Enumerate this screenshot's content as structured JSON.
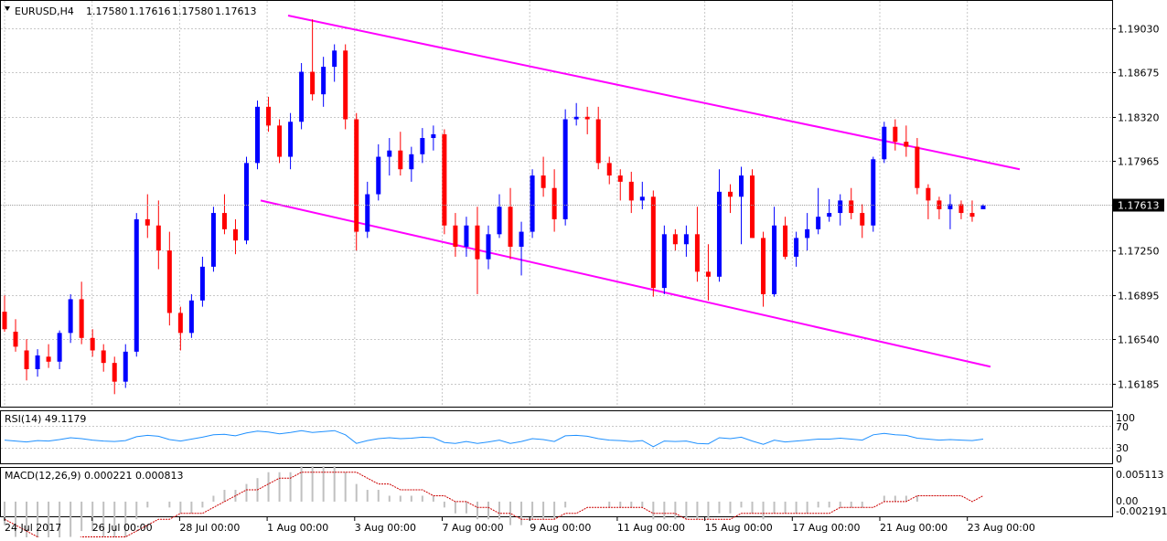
{
  "header": {
    "symbol": "EURUSD,H4",
    "open": "1.17580",
    "high": "1.17616",
    "low": "1.17580",
    "close": "1.17613"
  },
  "price_axis": {
    "ticks": [
      "1.19030",
      "1.18675",
      "1.18320",
      "1.17965",
      "1.17250",
      "1.16895",
      "1.16540",
      "1.16185"
    ],
    "current_price": "1.17613"
  },
  "rsi": {
    "label": "RSI(14) 49.1179",
    "ticks": [
      "100",
      "70",
      "30",
      "0"
    ]
  },
  "macd": {
    "label": "MACD(12,26,9) 0.000221 0.000813",
    "ticks": [
      "0.005113",
      "0.00",
      "-0.002191"
    ]
  },
  "time_axis": {
    "labels": [
      "24 Jul 2017",
      "26 Jul 00:00",
      "28 Jul 00:00",
      "1 Aug 00:00",
      "3 Aug 00:00",
      "7 Aug 00:00",
      "9 Aug 00:00",
      "11 Aug 00:00",
      "15 Aug 00:00",
      "17 Aug 00:00",
      "21 Aug 00:00",
      "23 Aug 00:00"
    ]
  },
  "colors": {
    "bull": "#0000ff",
    "bear": "#ff0000",
    "channel": "#ff00ff",
    "rsi_line": "#1e90ff",
    "macd_signal": "#cc0000",
    "macd_hist": "#c0c0c0",
    "grid": "#c8c8c8"
  },
  "chart_data": {
    "type": "candlestick",
    "ohlc": [
      [
        1.1676,
        1.1689,
        1.166,
        1.1662
      ],
      [
        1.166,
        1.167,
        1.1644,
        1.1648
      ],
      [
        1.1645,
        1.1654,
        1.1621,
        1.163
      ],
      [
        1.163,
        1.1646,
        1.1624,
        1.1641
      ],
      [
        1.164,
        1.165,
        1.1631,
        1.1636
      ],
      [
        1.1636,
        1.1661,
        1.163,
        1.1659
      ],
      [
        1.1659,
        1.169,
        1.1651,
        1.1686
      ],
      [
        1.1686,
        1.17,
        1.165,
        1.1655
      ],
      [
        1.1655,
        1.1662,
        1.164,
        1.1645
      ],
      [
        1.1645,
        1.165,
        1.1628,
        1.1635
      ],
      [
        1.1635,
        1.164,
        1.161,
        1.162
      ],
      [
        1.162,
        1.165,
        1.1615,
        1.1644
      ],
      [
        1.1644,
        1.1755,
        1.164,
        1.175
      ],
      [
        1.175,
        1.177,
        1.1735,
        1.1745
      ],
      [
        1.1745,
        1.1765,
        1.171,
        1.1725
      ],
      [
        1.1725,
        1.174,
        1.1665,
        1.1675
      ],
      [
        1.1675,
        1.168,
        1.1645,
        1.1659
      ],
      [
        1.1659,
        1.169,
        1.1655,
        1.1685
      ],
      [
        1.1685,
        1.172,
        1.168,
        1.1712
      ],
      [
        1.1712,
        1.176,
        1.1708,
        1.1755
      ],
      [
        1.1755,
        1.177,
        1.1738,
        1.1742
      ],
      [
        1.1742,
        1.175,
        1.1722,
        1.1733
      ],
      [
        1.1733,
        1.18,
        1.173,
        1.1795
      ],
      [
        1.1795,
        1.1845,
        1.179,
        1.184
      ],
      [
        1.184,
        1.1848,
        1.182,
        1.1825
      ],
      [
        1.1825,
        1.183,
        1.1795,
        1.18
      ],
      [
        1.18,
        1.1835,
        1.179,
        1.1828
      ],
      [
        1.1828,
        1.1875,
        1.1822,
        1.1868
      ],
      [
        1.1868,
        1.191,
        1.1845,
        1.185
      ],
      [
        1.185,
        1.188,
        1.184,
        1.1872
      ],
      [
        1.1872,
        1.189,
        1.186,
        1.1885
      ],
      [
        1.1885,
        1.189,
        1.1822,
        1.183
      ],
      [
        1.183,
        1.1835,
        1.1725,
        1.174
      ],
      [
        1.174,
        1.178,
        1.1735,
        1.177
      ],
      [
        1.177,
        1.181,
        1.1765,
        1.18
      ],
      [
        1.18,
        1.1815,
        1.1785,
        1.1805
      ],
      [
        1.1805,
        1.182,
        1.1785,
        1.179
      ],
      [
        1.179,
        1.1808,
        1.178,
        1.1802
      ],
      [
        1.1802,
        1.1823,
        1.1795,
        1.1815
      ],
      [
        1.1815,
        1.1825,
        1.1805,
        1.1818
      ],
      [
        1.1818,
        1.1822,
        1.1738,
        1.1745
      ],
      [
        1.1745,
        1.1755,
        1.172,
        1.1728
      ],
      [
        1.1728,
        1.1752,
        1.172,
        1.1745
      ],
      [
        1.1745,
        1.176,
        1.169,
        1.1718
      ],
      [
        1.1718,
        1.1745,
        1.171,
        1.1738
      ],
      [
        1.1738,
        1.177,
        1.1735,
        1.176
      ],
      [
        1.176,
        1.1775,
        1.1718,
        1.1728
      ],
      [
        1.1728,
        1.1748,
        1.1705,
        1.174
      ],
      [
        1.174,
        1.179,
        1.1735,
        1.1785
      ],
      [
        1.1785,
        1.18,
        1.1768,
        1.1775
      ],
      [
        1.1775,
        1.179,
        1.174,
        1.175
      ],
      [
        1.175,
        1.1838,
        1.1745,
        1.183
      ],
      [
        1.183,
        1.1843,
        1.1825,
        1.1832
      ],
      [
        1.1832,
        1.184,
        1.1818,
        1.183
      ],
      [
        1.183,
        1.184,
        1.179,
        1.1795
      ],
      [
        1.1795,
        1.18,
        1.1778,
        1.1785
      ],
      [
        1.1785,
        1.179,
        1.1765,
        1.178
      ],
      [
        1.178,
        1.1788,
        1.1755,
        1.1765
      ],
      [
        1.1765,
        1.178,
        1.1758,
        1.1768
      ],
      [
        1.1768,
        1.1773,
        1.1688,
        1.1695
      ],
      [
        1.1695,
        1.1745,
        1.169,
        1.1738
      ],
      [
        1.1738,
        1.1742,
        1.1725,
        1.173
      ],
      [
        1.173,
        1.1745,
        1.172,
        1.1738
      ],
      [
        1.1738,
        1.176,
        1.17,
        1.1708
      ],
      [
        1.1708,
        1.173,
        1.1685,
        1.1704
      ],
      [
        1.1704,
        1.179,
        1.17,
        1.1772
      ],
      [
        1.1772,
        1.1778,
        1.1755,
        1.1768
      ],
      [
        1.1768,
        1.1792,
        1.173,
        1.1785
      ],
      [
        1.1785,
        1.179,
        1.1735,
        1.1735
      ],
      [
        1.1735,
        1.174,
        1.168,
        1.169
      ],
      [
        1.169,
        1.176,
        1.1688,
        1.1745
      ],
      [
        1.1745,
        1.1752,
        1.1718,
        1.172
      ],
      [
        1.172,
        1.174,
        1.1712,
        1.1735
      ],
      [
        1.1735,
        1.1755,
        1.1725,
        1.1742
      ],
      [
        1.1742,
        1.1775,
        1.1738,
        1.1752
      ],
      [
        1.1752,
        1.1766,
        1.1748,
        1.1755
      ],
      [
        1.1755,
        1.177,
        1.1745,
        1.1765
      ],
      [
        1.1765,
        1.1775,
        1.175,
        1.1755
      ],
      [
        1.1755,
        1.1762,
        1.1735,
        1.1745
      ],
      [
        1.1745,
        1.18,
        1.174,
        1.1798
      ],
      [
        1.1798,
        1.1828,
        1.1795,
        1.1824
      ],
      [
        1.1824,
        1.183,
        1.1805,
        1.1812
      ],
      [
        1.1812,
        1.1825,
        1.18,
        1.1808
      ],
      [
        1.1808,
        1.1815,
        1.177,
        1.1775
      ],
      [
        1.1775,
        1.1778,
        1.175,
        1.1765
      ],
      [
        1.1765,
        1.1768,
        1.175,
        1.1758
      ],
      [
        1.1758,
        1.177,
        1.1742,
        1.1762
      ],
      [
        1.1762,
        1.1765,
        1.175,
        1.1755
      ],
      [
        1.1755,
        1.1765,
        1.1748,
        1.1752
      ],
      [
        1.1758,
        1.1762,
        1.1758,
        1.1761
      ]
    ],
    "channel_lines": [
      {
        "from": [
          0,
          1.1913
        ],
        "to": [
          1,
          1.179
        ]
      },
      {
        "from": [
          0,
          1.1765
        ],
        "to": [
          1,
          1.1632
        ]
      }
    ],
    "rsi_values": [
      47,
      45,
      43,
      46,
      45,
      48,
      52,
      50,
      47,
      45,
      44,
      46,
      54,
      57,
      55,
      48,
      45,
      49,
      53,
      58,
      59,
      56,
      62,
      66,
      64,
      60,
      63,
      67,
      63,
      65,
      67,
      58,
      40,
      46,
      50,
      52,
      50,
      51,
      53,
      52,
      42,
      40,
      44,
      40,
      43,
      47,
      40,
      44,
      50,
      48,
      44,
      56,
      57,
      55,
      50,
      47,
      46,
      44,
      46,
      33,
      45,
      44,
      45,
      40,
      39,
      52,
      50,
      53,
      45,
      38,
      47,
      43,
      45,
      47,
      49,
      49,
      51,
      49,
      47,
      58,
      61,
      58,
      57,
      51,
      49,
      47,
      48,
      47,
      46,
      49
    ],
    "macd_values": [
      -4,
      -6,
      -8,
      -9,
      -9,
      -8,
      -6,
      -5,
      -5,
      -6,
      -7,
      -7,
      -3,
      -1,
      0,
      -1,
      -2,
      -2,
      -1,
      1,
      2,
      2,
      3,
      4,
      5,
      5,
      5,
      6,
      6,
      6,
      6,
      5,
      3,
      2,
      2,
      1,
      1,
      1,
      1,
      1,
      -1,
      -2,
      -2,
      -3,
      -3,
      -3,
      -4,
      -4,
      -3,
      -3,
      -3,
      -1,
      0,
      0,
      0,
      -1,
      -1,
      -1,
      -1,
      -3,
      -3,
      -3,
      -3,
      -3,
      -3,
      -2,
      -2,
      -1,
      -2,
      -3,
      -2,
      -2,
      -2,
      -2,
      -1,
      -1,
      -1,
      -1,
      -1,
      0,
      1,
      1,
      1,
      1,
      0,
      0,
      0,
      0,
      0,
      0
    ],
    "macd_signal": [
      -3,
      -4,
      -5,
      -6,
      -7,
      -7,
      -7,
      -6,
      -6,
      -6,
      -6,
      -6,
      -5,
      -4,
      -3,
      -3,
      -2,
      -2,
      -2,
      -1,
      0,
      1,
      2,
      2,
      3,
      4,
      4,
      5,
      5,
      5,
      5,
      5,
      5,
      4,
      3,
      3,
      2,
      2,
      2,
      1,
      1,
      0,
      0,
      -1,
      -1,
      -2,
      -2,
      -3,
      -3,
      -3,
      -3,
      -2,
      -2,
      -1,
      -1,
      -1,
      -1,
      -1,
      -1,
      -2,
      -2,
      -2,
      -3,
      -3,
      -3,
      -3,
      -3,
      -2,
      -2,
      -2,
      -2,
      -2,
      -2,
      -2,
      -2,
      -2,
      -1,
      -1,
      -1,
      -1,
      0,
      0,
      0,
      1,
      1,
      1,
      1,
      1,
      0,
      1
    ],
    "ylim": [
      1.16,
      1.1924
    ],
    "rsi_range": [
      0,
      100
    ],
    "macd_range": [
      -2.191,
      5.113
    ]
  }
}
